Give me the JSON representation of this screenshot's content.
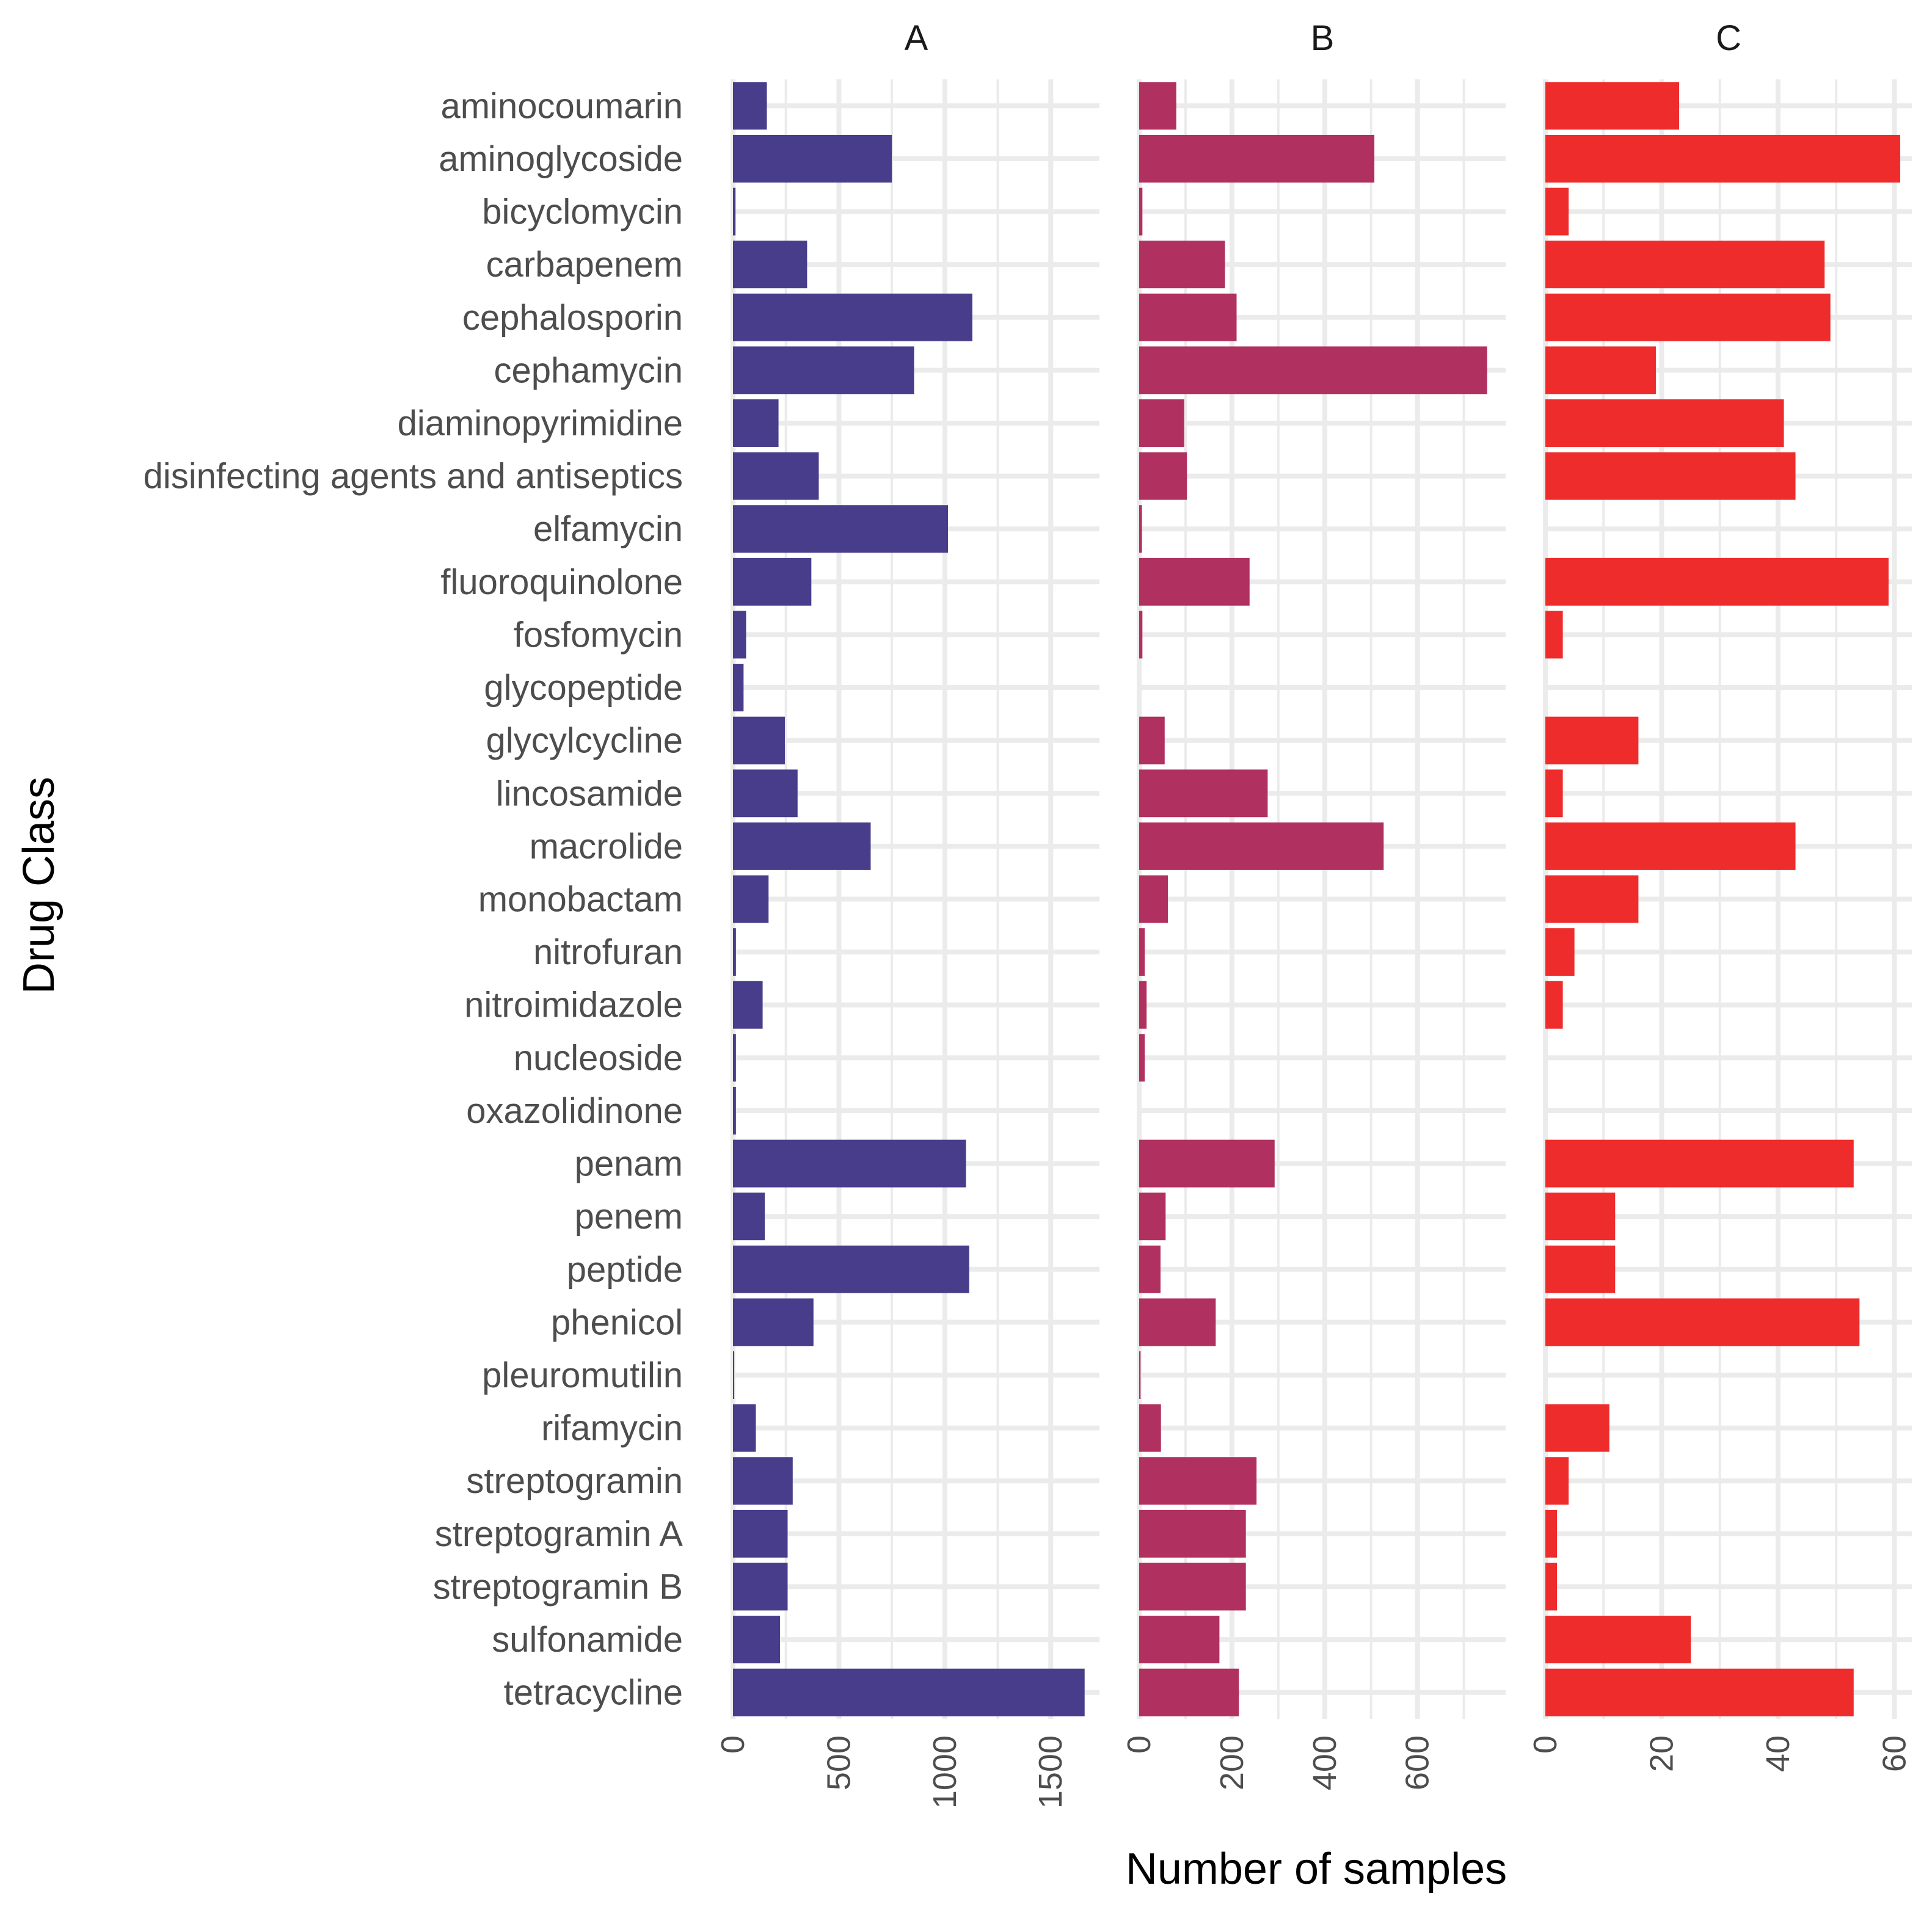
{
  "chart_data": {
    "type": "bar",
    "orientation": "horizontal",
    "xlabel": "Number of samples",
    "ylabel": "Drug Class",
    "categories": [
      "aminocoumarin",
      "aminoglycoside",
      "bicyclomycin",
      "carbapenem",
      "cephalosporin",
      "cephamycin",
      "diaminopyrimidine",
      "disinfecting agents and antiseptics",
      "elfamycin",
      "fluoroquinolone",
      "fosfomycin",
      "glycopeptide",
      "glycylcycline",
      "lincosamide",
      "macrolide",
      "monobactam",
      "nitrofuran",
      "nitroimidazole",
      "nucleoside",
      "oxazolidinone",
      "penam",
      "penem",
      "peptide",
      "phenicol",
      "pleuromutilin",
      "rifamycin",
      "streptogramin",
      "streptogramin A",
      "streptogramin B",
      "sulfonamide",
      "tetracycline"
    ],
    "panels": [
      {
        "name": "A",
        "color": "#483d8b",
        "xlim": [
          0,
          1730
        ],
        "ticks": [
          0,
          500,
          1000,
          1500
        ],
        "tick_labels": [
          "0",
          "500",
          "1000",
          "1500"
        ],
        "values": [
          160,
          750,
          12,
          350,
          1130,
          855,
          215,
          405,
          1015,
          370,
          62,
          50,
          245,
          305,
          650,
          168,
          14,
          140,
          14,
          14,
          1100,
          150,
          1115,
          380,
          6,
          108,
          282,
          258,
          258,
          222,
          1660
        ]
      },
      {
        "name": "B",
        "color": "#b03060",
        "xlim": [
          0,
          790
        ],
        "ticks": [
          0,
          200,
          400,
          600
        ],
        "tick_labels": [
          "0",
          "200",
          "400",
          "600"
        ],
        "values": [
          80,
          507,
          7,
          185,
          210,
          750,
          97,
          103,
          6,
          238,
          7,
          0,
          55,
          277,
          527,
          62,
          12,
          16,
          12,
          0,
          292,
          57,
          46,
          165,
          3,
          47,
          253,
          230,
          230,
          173,
          215
        ]
      },
      {
        "name": "C",
        "color": "#ee2c2c",
        "xlim": [
          0,
          63
        ],
        "ticks": [
          0,
          20,
          40,
          60
        ],
        "tick_labels": [
          "0",
          "20",
          "40",
          "60"
        ],
        "values": [
          23,
          61,
          4,
          48,
          49,
          19,
          41,
          43,
          0,
          59,
          3,
          0,
          16,
          3,
          43,
          16,
          5,
          3,
          0,
          0,
          53,
          12,
          12,
          54,
          0,
          11,
          4,
          2,
          2,
          25,
          53
        ]
      }
    ]
  }
}
